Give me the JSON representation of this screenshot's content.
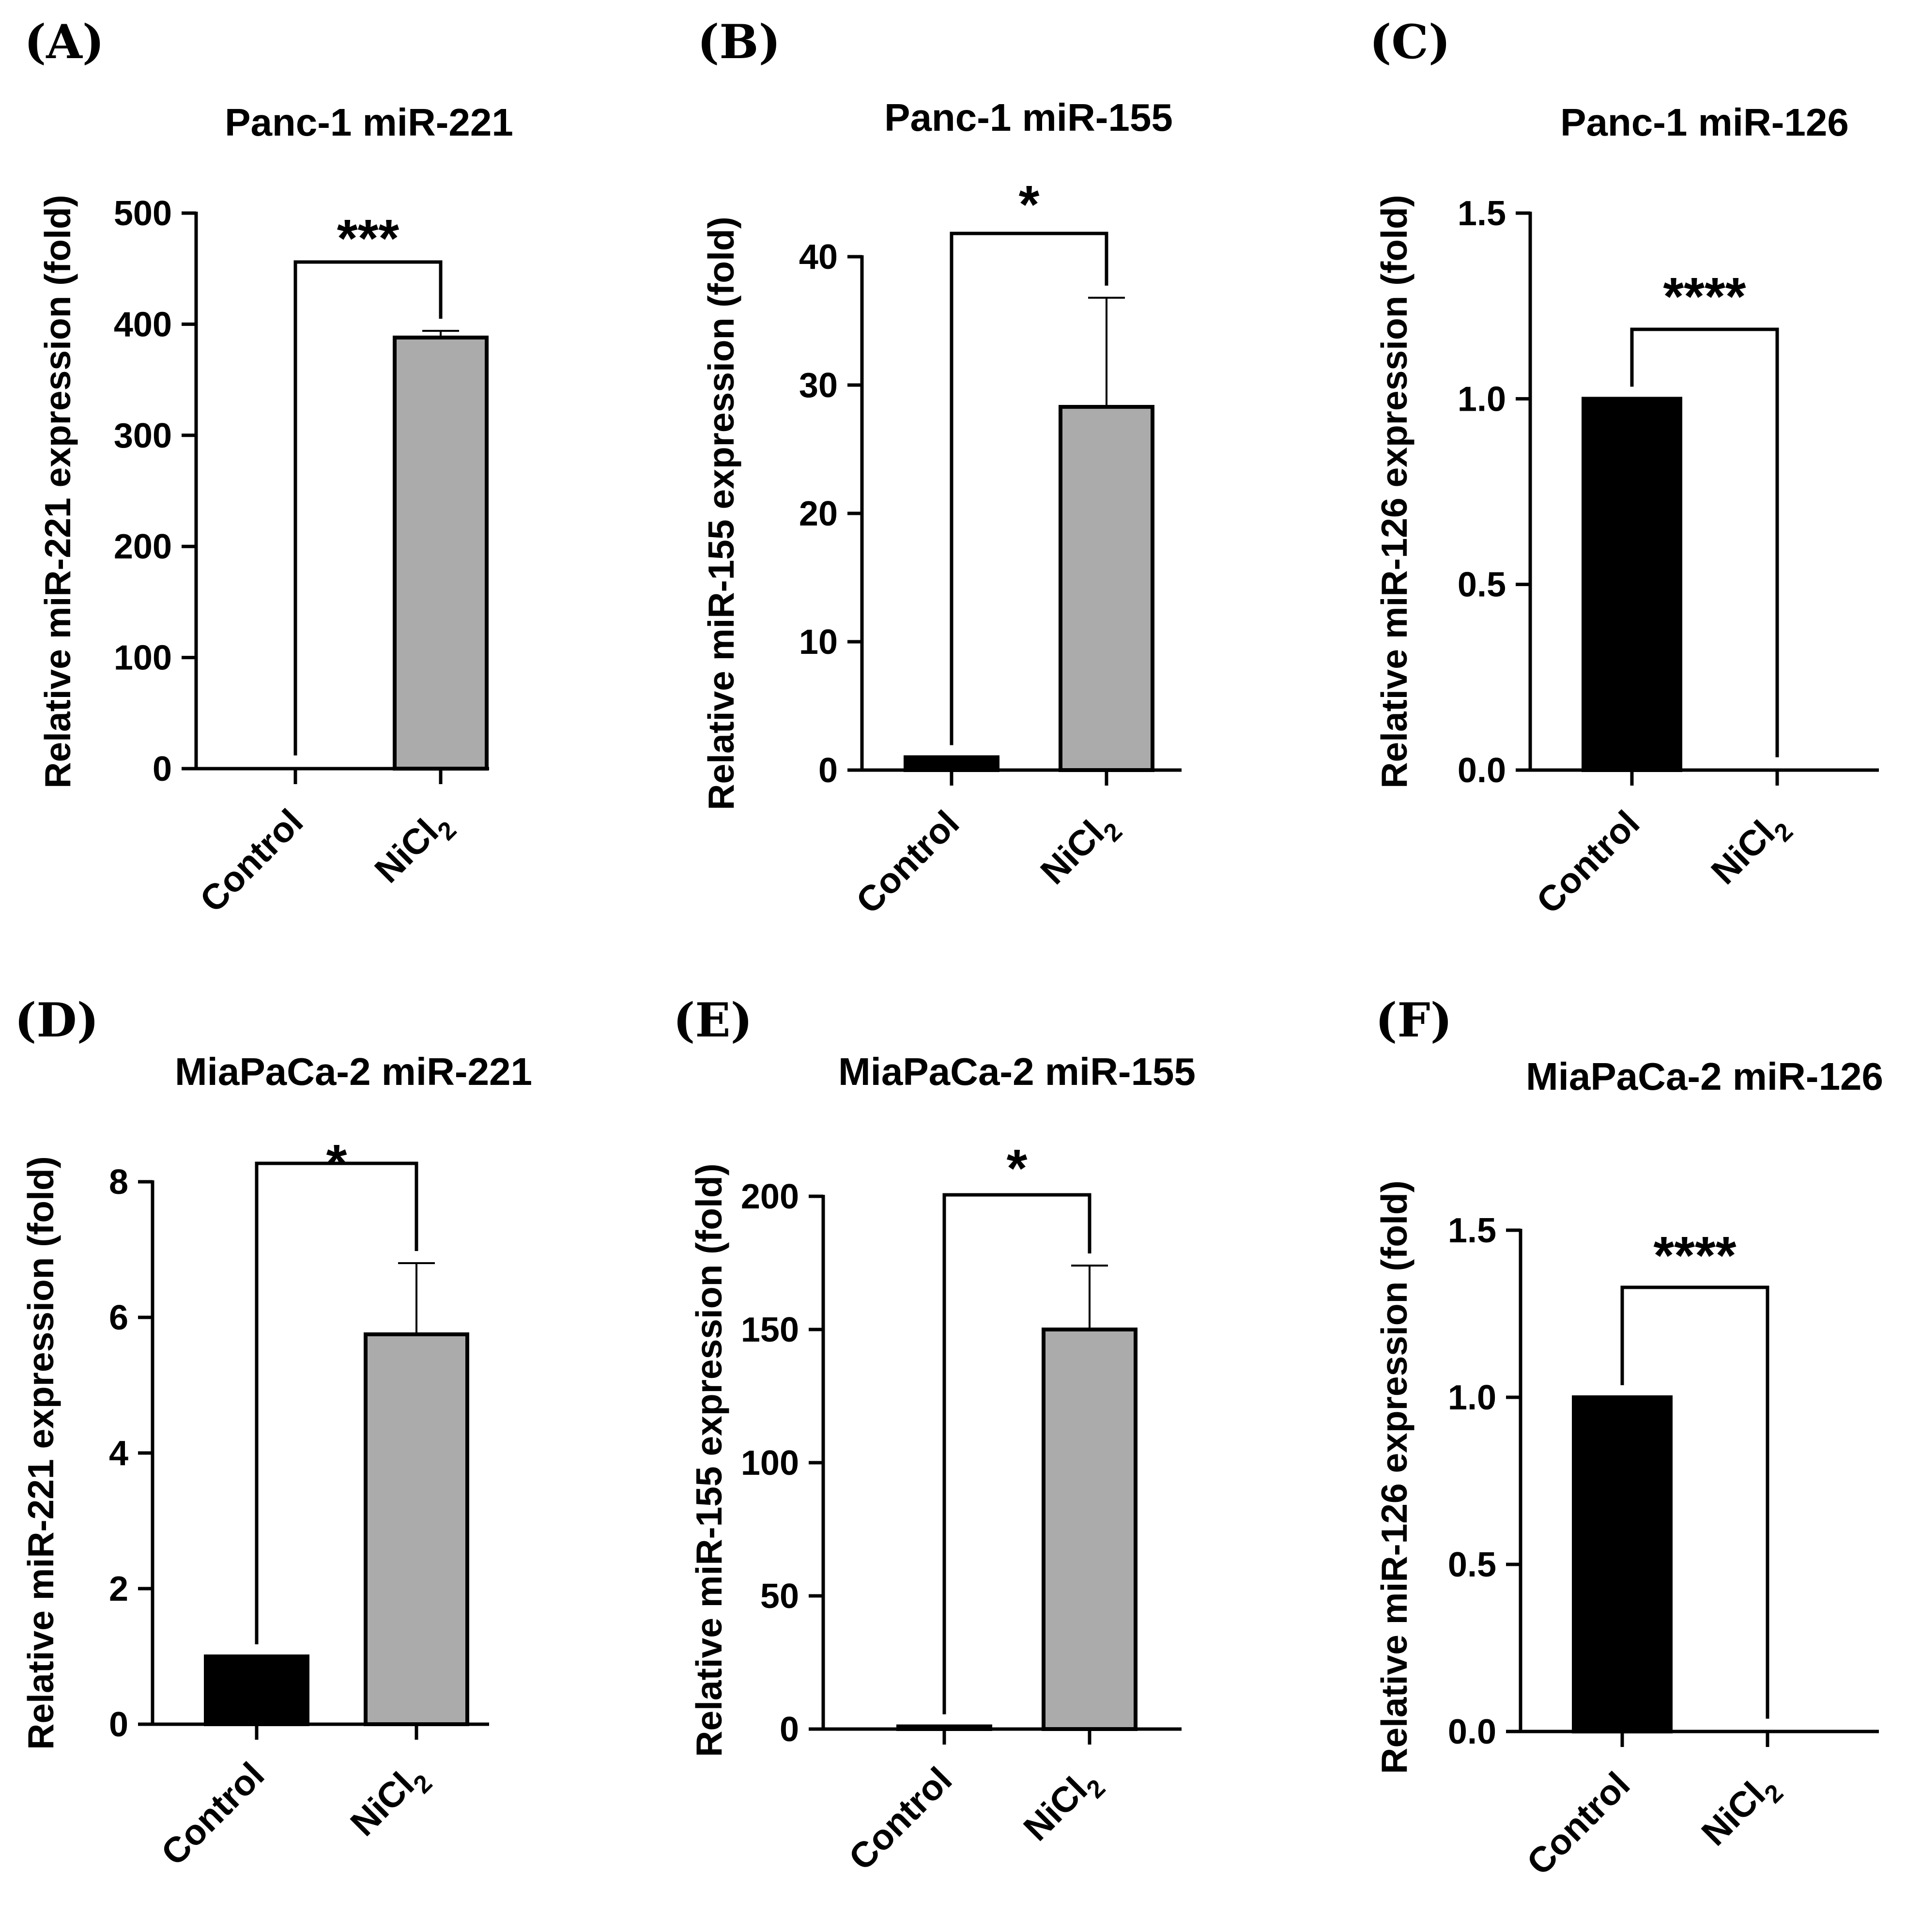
{
  "chart_data": [
    {
      "panel": "(A)",
      "type": "bar",
      "title": "Panc-1 miR-221",
      "ylabel": "Relative miR-221 expression (fold)",
      "xlabel": "",
      "categories": [
        "Control",
        "NiCl2"
      ],
      "category_parts": [
        {
          "base": "Control",
          "sub": ""
        },
        {
          "base": "NiCl",
          "sub": "2"
        }
      ],
      "values": [
        1,
        388
      ],
      "errors": [
        0,
        6
      ],
      "bar_colors": [
        "#000000",
        "#ababab"
      ],
      "ylim": [
        0,
        500
      ],
      "yticks": [
        0,
        100,
        200,
        300,
        400,
        500
      ],
      "significance": "***",
      "grid": false
    },
    {
      "panel": "(B)",
      "type": "bar",
      "title": "Panc-1 miR-155",
      "ylabel": "Relative miR-155 expression (fold)",
      "xlabel": "",
      "categories": [
        "Control",
        "NiCl2"
      ],
      "category_parts": [
        {
          "base": "Control",
          "sub": ""
        },
        {
          "base": "NiCl",
          "sub": "2"
        }
      ],
      "values": [
        1,
        28.3
      ],
      "errors": [
        0,
        8.5
      ],
      "bar_colors": [
        "#000000",
        "#ababab"
      ],
      "ylim": [
        0,
        40
      ],
      "yticks": [
        0,
        10,
        20,
        30,
        40
      ],
      "significance": "*",
      "grid": false
    },
    {
      "panel": "(C)",
      "type": "bar",
      "title": "Panc-1 miR-126",
      "ylabel": "Relative miR-126 expression (fold)",
      "xlabel": "",
      "categories": [
        "Control",
        "NiCl2"
      ],
      "category_parts": [
        {
          "base": "Control",
          "sub": ""
        },
        {
          "base": "NiCl",
          "sub": "2"
        }
      ],
      "values": [
        1.0,
        0.002
      ],
      "errors": [
        0,
        0
      ],
      "bar_colors": [
        "#000000",
        "#ababab"
      ],
      "ylim": [
        0,
        1.5
      ],
      "yticks": [
        0.0,
        0.5,
        1.0,
        1.5
      ],
      "ytick_labels": [
        "0.0",
        "0.5",
        "1.0",
        "1.5"
      ],
      "significance": "****",
      "grid": false
    },
    {
      "panel": "(D)",
      "type": "bar",
      "title": "MiaPaCa-2 miR-221",
      "ylabel": "Relative miR-221 expression (fold)",
      "xlabel": "",
      "categories": [
        "Control",
        "NiCl2"
      ],
      "category_parts": [
        {
          "base": "Control",
          "sub": ""
        },
        {
          "base": "NiCl",
          "sub": "2"
        }
      ],
      "values": [
        1,
        5.75
      ],
      "errors": [
        0,
        1.05
      ],
      "bar_colors": [
        "#000000",
        "#ababab"
      ],
      "ylim": [
        0,
        8
      ],
      "yticks": [
        0,
        2,
        4,
        6,
        8
      ],
      "significance": "*",
      "grid": false
    },
    {
      "panel": "(E)",
      "type": "bar",
      "title": "MiaPaCa-2 miR-155",
      "ylabel": "Relative miR-155 expression (fold)",
      "xlabel": "",
      "categories": [
        "Control",
        "NiCl2"
      ],
      "category_parts": [
        {
          "base": "Control",
          "sub": ""
        },
        {
          "base": "NiCl",
          "sub": "2"
        }
      ],
      "values": [
        1,
        150
      ],
      "errors": [
        0,
        24
      ],
      "bar_colors": [
        "#000000",
        "#ababab"
      ],
      "ylim": [
        0,
        200
      ],
      "yticks": [
        0,
        50,
        100,
        150,
        200
      ],
      "significance": "*",
      "grid": false
    },
    {
      "panel": "(F)",
      "type": "bar",
      "title": "MiaPaCa-2 miR-126",
      "ylabel": "Relative miR-126 expression (fold)",
      "xlabel": "",
      "categories": [
        "Control",
        "NiCl2"
      ],
      "category_parts": [
        {
          "base": "Control",
          "sub": ""
        },
        {
          "base": "NiCl",
          "sub": "2"
        }
      ],
      "values": [
        1.0,
        0.002
      ],
      "errors": [
        0,
        0
      ],
      "bar_colors": [
        "#000000",
        "#ababab"
      ],
      "ylim": [
        0,
        1.5
      ],
      "yticks": [
        0.0,
        0.5,
        1.0,
        1.5
      ],
      "ytick_labels": [
        "0.0",
        "0.5",
        "1.0",
        "1.5"
      ],
      "significance": "****",
      "grid": false
    }
  ]
}
